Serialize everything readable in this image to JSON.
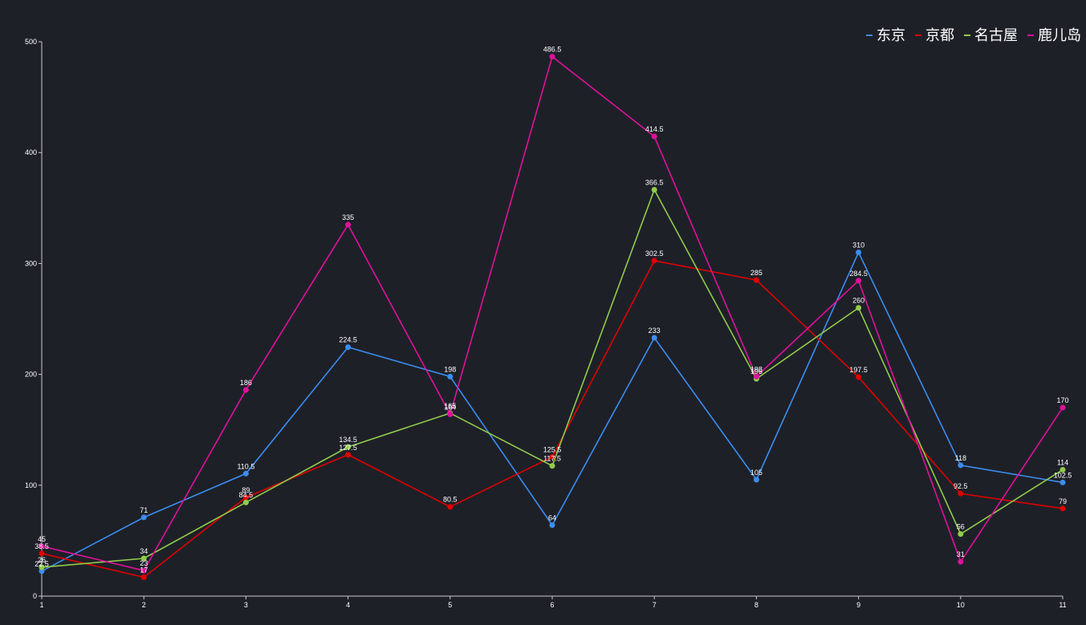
{
  "chart_data": {
    "type": "line",
    "categories": [
      "1",
      "2",
      "3",
      "4",
      "5",
      "6",
      "7",
      "8",
      "9",
      "10",
      "11"
    ],
    "ylim": [
      0,
      500
    ],
    "yticks": [
      0,
      100,
      200,
      300,
      400,
      500
    ],
    "grid": false,
    "legend_position": "top-right",
    "series": [
      {
        "name": "东京",
        "color": "#3a8ef0",
        "values": [
          22.5,
          71,
          110.5,
          224.5,
          198,
          64,
          233,
          105,
          310,
          118,
          102.5
        ]
      },
      {
        "name": "京都",
        "color": "#e00000",
        "values": [
          38.5,
          17,
          89,
          127.5,
          80.5,
          125.5,
          302.5,
          285,
          197.5,
          92.5,
          79
        ]
      },
      {
        "name": "名古屋",
        "color": "#91cc4a",
        "values": [
          26,
          34,
          84.5,
          134.5,
          165,
          117.5,
          366.5,
          196,
          260,
          56,
          114
        ]
      },
      {
        "name": "鹿儿岛",
        "color": "#e0109c",
        "values": [
          45,
          23,
          186,
          335,
          164,
          486.5,
          414.5,
          198,
          284.5,
          31,
          170
        ]
      }
    ]
  }
}
